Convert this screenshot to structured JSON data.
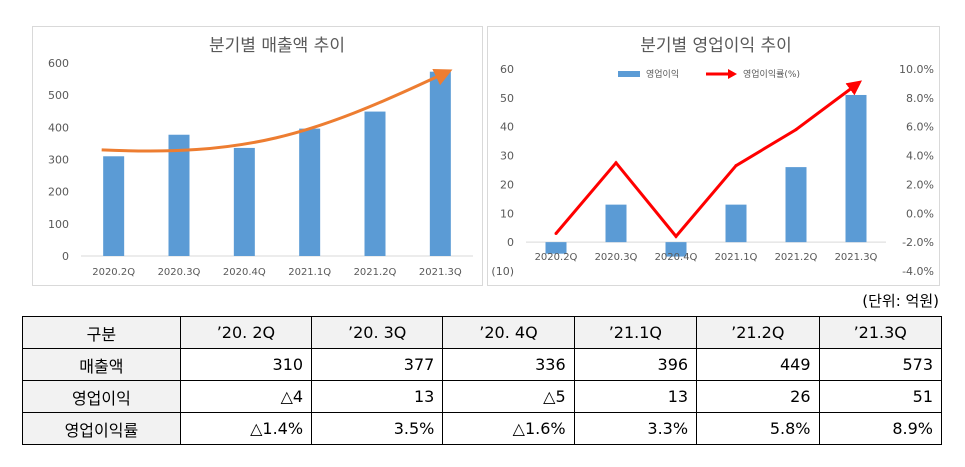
{
  "chart_data": [
    {
      "type": "bar",
      "title": "분기별 매출액 추이",
      "categories": [
        "2020.2Q",
        "2020.3Q",
        "2020.4Q",
        "2021.1Q",
        "2021.2Q",
        "2021.3Q"
      ],
      "values": [
        310,
        377,
        336,
        396,
        449,
        573
      ],
      "ylim": [
        0,
        600
      ],
      "yticks": [
        "0",
        "100",
        "200",
        "300",
        "400",
        "500",
        "600"
      ],
      "bar_color": "#5b9bd5",
      "trend_color": "#ed7d31"
    },
    {
      "type": "bar+line",
      "title": "분기별 영업이익 추이",
      "categories": [
        "2020.2Q",
        "2020.3Q",
        "2020.4Q",
        "2021.1Q",
        "2021.2Q",
        "2021.3Q"
      ],
      "series": [
        {
          "name": "영업이익",
          "type": "bar",
          "axis": "left",
          "values": [
            -4,
            13,
            -5,
            13,
            26,
            51
          ],
          "color": "#5b9bd5"
        },
        {
          "name": "영업이익률(%)",
          "type": "line",
          "axis": "right",
          "values": [
            -1.4,
            3.5,
            -1.6,
            3.3,
            5.8,
            8.9
          ],
          "color": "#ff0000"
        }
      ],
      "ylim_left": [
        -10,
        60
      ],
      "yticks_left": [
        "(10)",
        "0",
        "10",
        "20",
        "30",
        "40",
        "50",
        "60"
      ],
      "ylim_right": [
        -4,
        10
      ],
      "yticks_right": [
        "-4.0%",
        "-2.0%",
        "0.0%",
        "2.0%",
        "4.0%",
        "6.0%",
        "8.0%",
        "10.0%"
      ],
      "legend": "top"
    }
  ],
  "unit_note": "(단위: 억원)",
  "table": {
    "headers": [
      "구분",
      "’20. 2Q",
      "’20. 3Q",
      "’20. 4Q",
      "’21.1Q",
      "’21.2Q",
      "’21.3Q"
    ],
    "rows": [
      {
        "label": "매출액",
        "cells": [
          "310",
          "377",
          "336",
          "396",
          "449",
          "573"
        ]
      },
      {
        "label": "영업이익",
        "cells": [
          "△4",
          "13",
          "△5",
          "13",
          "26",
          "51"
        ]
      },
      {
        "label": "영업이익률",
        "cells": [
          "△1.4%",
          "3.5%",
          "△1.6%",
          "3.3%",
          "5.8%",
          "8.9%"
        ]
      }
    ]
  }
}
